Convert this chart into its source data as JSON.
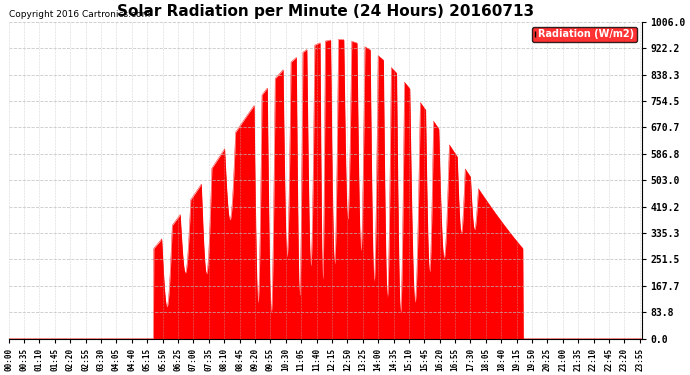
{
  "title": "Solar Radiation per Minute (24 Hours) 20160713",
  "copyright_text": "Copyright 2016 Cartronics.com",
  "legend_label": "Radiation (W/m2)",
  "y_ticks": [
    0.0,
    83.8,
    167.7,
    251.5,
    335.3,
    419.2,
    503.0,
    586.8,
    670.7,
    754.5,
    838.3,
    922.2,
    1006.0
  ],
  "y_max": 1006.0,
  "fill_color": "#FF0000",
  "line_color": "#FF0000",
  "background_color": "#FFFFFF",
  "grid_color": "#BBBBBB",
  "title_fontsize": 11,
  "copyright_fontsize": 6.5,
  "tick_fontsize": 5.5,
  "ytick_fontsize": 7,
  "legend_bg_color": "#FF0000",
  "legend_text_color": "#FFFFFF",
  "n_minutes": 1440,
  "tick_interval_minutes": 35
}
